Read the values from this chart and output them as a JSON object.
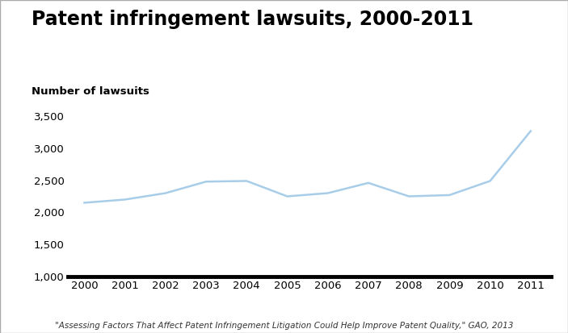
{
  "title": "Patent infringement lawsuits, 2000-2011",
  "ylabel": "Number of lawsuits",
  "footnote": "\"Assessing Factors That Affect Patent Infringement Litigation Could Help Improve Patent Quality,\" GAO, 2013",
  "years": [
    2000,
    2001,
    2002,
    2003,
    2004,
    2005,
    2006,
    2007,
    2008,
    2009,
    2010,
    2011
  ],
  "values": [
    2150,
    2200,
    2300,
    2480,
    2490,
    2250,
    2300,
    2460,
    2250,
    2270,
    2490,
    3270
  ],
  "line_color": "#a8cde8",
  "line_width": 1.8,
  "ylim": [
    1000,
    3600
  ],
  "yticks": [
    1000,
    1500,
    2000,
    2500,
    3000,
    3500
  ],
  "background_color": "#ffffff",
  "border_color": "#aaaaaa",
  "title_fontsize": 17,
  "ylabel_fontsize": 9.5,
  "tick_fontsize": 9.5,
  "footnote_fontsize": 7.5
}
